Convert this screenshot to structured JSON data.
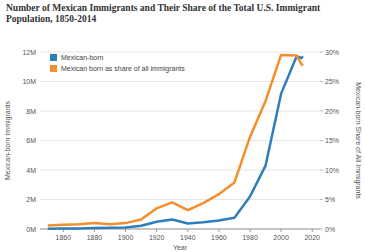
{
  "chart_data": {
    "type": "line",
    "title": "Number of Mexican Immigrants and Their Share of the Total U.S. Immigrant Population, 1850-2014",
    "x_label": "Year",
    "y_label": "Mexican-born Immigrants",
    "y2_label": "Mexican-born Share of All Immigrants",
    "x": [
      1850,
      1860,
      1870,
      1880,
      1890,
      1900,
      1910,
      1920,
      1930,
      1940,
      1950,
      1960,
      1970,
      1980,
      1990,
      2000,
      2010,
      2013,
      2014
    ],
    "series": [
      {
        "name": "Mexican-born",
        "color": "#2f7ebc",
        "values": [
          0.013,
          0.027,
          0.042,
          0.068,
          0.078,
          0.103,
          0.222,
          0.486,
          0.641,
          0.377,
          0.451,
          0.576,
          0.76,
          2.199,
          4.298,
          9.177,
          11.711,
          11.585,
          11.714
        ]
      },
      {
        "name": "Mexican born as share of all immigrants",
        "color": "#f28e2b",
        "axis": "y2",
        "values": [
          0.6,
          0.7,
          0.8,
          1.0,
          0.8,
          1.0,
          1.6,
          3.5,
          4.5,
          3.2,
          4.4,
          5.9,
          7.9,
          15.6,
          21.7,
          29.5,
          29.4,
          28.0,
          27.7
        ]
      }
    ],
    "xlim": [
      1845,
      2025
    ],
    "xticks": [
      1860,
      1880,
      1900,
      1920,
      1940,
      1960,
      1980,
      2000,
      2020
    ],
    "ylim": [
      0,
      12
    ],
    "yticks": [
      {
        "value": 0,
        "label": "0M"
      },
      {
        "value": 2,
        "label": "2M"
      },
      {
        "value": 4,
        "label": "4M"
      },
      {
        "value": 6,
        "label": "6M"
      },
      {
        "value": 8,
        "label": "8M"
      },
      {
        "value": 10,
        "label": "10M"
      },
      {
        "value": 12,
        "label": "12M"
      }
    ],
    "y2lim": [
      0,
      30
    ],
    "y2ticks": [
      {
        "value": 0,
        "label": "0%"
      },
      {
        "value": 5,
        "label": "5%"
      },
      {
        "value": 10,
        "label": "10%"
      },
      {
        "value": 15,
        "label": "15%"
      },
      {
        "value": 20,
        "label": "20%"
      },
      {
        "value": 25,
        "label": "25%"
      },
      {
        "value": 30,
        "label": "30%"
      }
    ],
    "grid": true,
    "legend": "top-left"
  }
}
